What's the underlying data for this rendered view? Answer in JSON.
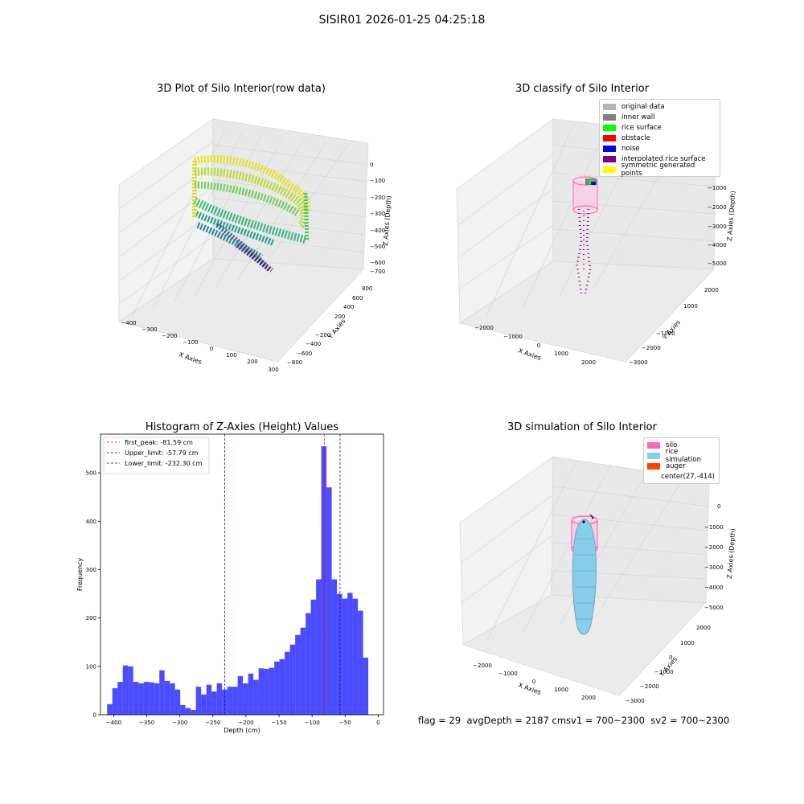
{
  "page": {
    "suptitle": "SISIR01 2026-01-25 04:25:18"
  },
  "panels": {
    "raw": {
      "title": "3D Plot of Silo Interior(row data)",
      "xlabel": "X Axies",
      "ylabel": "Y Axies",
      "zlabel": "Z Axies (Depth)",
      "xticks": [
        "−400",
        "−300",
        "−200",
        "−100",
        "0",
        "100",
        "200",
        "300"
      ],
      "yticks": [
        "800",
        "600",
        "400",
        "200",
        "−200",
        "−400",
        "−600",
        "−800"
      ],
      "zticks": [
        "0",
        "−100",
        "−200",
        "−300",
        "−400",
        "−500",
        "−600",
        "−700"
      ]
    },
    "classify": {
      "title": "3D classify of Silo Interior",
      "xlabel": "X Axies",
      "ylabel": "Y Axies",
      "zlabel": "Z Axies (Depth)",
      "xticks": [
        "−2000",
        "−1000",
        "0",
        "1000",
        "2000"
      ],
      "yticks": [
        "2000",
        "1000",
        "−1000",
        "−2000",
        "−3000"
      ],
      "zticks": [
        "0",
        "−1000",
        "−2000",
        "−3000",
        "−4000",
        "−5000"
      ],
      "legend": [
        {
          "label": "original data",
          "color": "#b3b3b3"
        },
        {
          "label": "inner wall",
          "color": "#808080"
        },
        {
          "label": "rice surface",
          "color": "#00ff00"
        },
        {
          "label": "obstacle",
          "color": "#ff0000"
        },
        {
          "label": "noise",
          "color": "#0000ff"
        },
        {
          "label": "interpolated rice surface",
          "color": "#800080"
        },
        {
          "label": "symmetric generated points",
          "color": "#ffff00"
        }
      ]
    },
    "simulation": {
      "title": "3D simulation of Silo Interior",
      "xlabel": "X Axies",
      "ylabel": "Y Axies",
      "zlabel": "Z Axies (Depth)",
      "xticks": [
        "−2000",
        "−1000",
        "0",
        "1000",
        "2000"
      ],
      "yticks": [
        "2000",
        "1000",
        "0",
        "−1000",
        "−2000",
        "−3000"
      ],
      "zticks": [
        "0",
        "−1000",
        "−2000",
        "−3000",
        "−4000",
        "−5000"
      ],
      "legend": [
        {
          "label": "silo",
          "color": "#ff69b4"
        },
        {
          "label": "rice simulation",
          "color": "#87ceeb"
        },
        {
          "label": "auger",
          "color": "#ff4500"
        },
        {
          "label": "center(27,-414)",
          "color": ""
        }
      ]
    }
  },
  "footer": {
    "text": "flag = 29  avgDepth = 2187 cmsv1 = 700~2300  sv2 = 700~2300"
  },
  "chart_data": [
    {
      "type": "bar",
      "title": "Histogram of Z-Axies (Height) Values",
      "xlabel": "Depth (cm)",
      "ylabel": "Frequency",
      "xlim": [
        -420,
        8
      ],
      "ylim": [
        0,
        580
      ],
      "xticks": [
        -400,
        -350,
        -300,
        -250,
        -200,
        -150,
        -100,
        -50,
        0
      ],
      "xtick_labels": [
        "−400",
        "−350",
        "−300",
        "−250",
        "−200",
        "−150",
        "−100",
        "−50",
        "0"
      ],
      "yticks": [
        0,
        100,
        200,
        300,
        400,
        500
      ],
      "bin_start": -410,
      "bin_width": 7.9,
      "values": [
        22,
        55,
        68,
        102,
        100,
        68,
        65,
        68,
        67,
        65,
        92,
        70,
        65,
        52,
        20,
        14,
        10,
        58,
        42,
        62,
        48,
        65,
        52,
        58,
        58,
        80,
        65,
        85,
        72,
        96,
        95,
        97,
        110,
        115,
        130,
        145,
        165,
        180,
        210,
        238,
        280,
        555,
        470,
        280,
        250,
        240,
        252,
        240,
        215,
        118
      ],
      "bar_color": "#0000ff",
      "vlines": [
        {
          "x": -81.59,
          "label": "first_peak: -81.59 cm",
          "color": "#ff0000"
        },
        {
          "x": -57.79,
          "label": "Upper_limit: -57.79 cm",
          "color": "#0000ff"
        },
        {
          "x": -232.3,
          "label": "Lower_limit: -232.30 cm",
          "color": "#0000ff"
        }
      ],
      "grid": false,
      "legend_position": "top-left"
    }
  ]
}
